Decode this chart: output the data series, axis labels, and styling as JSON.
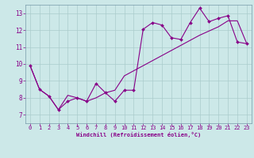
{
  "xlabel": "Windchill (Refroidissement éolien,°C)",
  "bg_color": "#cce8e8",
  "line_color": "#880088",
  "grid_color": "#aacccc",
  "spine_color": "#7799aa",
  "xlim": [
    -0.5,
    23.5
  ],
  "ylim": [
    6.5,
    13.5
  ],
  "xticks": [
    0,
    1,
    2,
    3,
    4,
    5,
    6,
    7,
    8,
    9,
    10,
    11,
    12,
    13,
    14,
    15,
    16,
    17,
    18,
    19,
    20,
    21,
    22,
    23
  ],
  "yticks": [
    7,
    8,
    9,
    10,
    11,
    12,
    13
  ],
  "series1_x": [
    0,
    1,
    2,
    3,
    4,
    5,
    6,
    7,
    8,
    9,
    10,
    11,
    12,
    13,
    14,
    15,
    16,
    17,
    18,
    19,
    20,
    21,
    22,
    23
  ],
  "series1_y": [
    9.9,
    8.5,
    8.1,
    7.3,
    7.8,
    8.0,
    7.8,
    8.85,
    8.3,
    7.8,
    8.45,
    8.45,
    12.05,
    12.45,
    12.3,
    11.55,
    11.45,
    12.45,
    13.3,
    12.5,
    12.7,
    12.85,
    11.3,
    11.2
  ],
  "series2_x": [
    0,
    1,
    2,
    3,
    4,
    5,
    6,
    7,
    8,
    9,
    10,
    11,
    12,
    13,
    14,
    15,
    16,
    17,
    18,
    19,
    20,
    21,
    22,
    23
  ],
  "series2_y": [
    9.9,
    8.5,
    8.1,
    7.3,
    8.15,
    8.0,
    7.8,
    8.0,
    8.3,
    8.45,
    9.3,
    9.6,
    9.9,
    10.2,
    10.5,
    10.8,
    11.1,
    11.4,
    11.7,
    11.95,
    12.2,
    12.55,
    12.55,
    11.2
  ],
  "tick_fontsize": 5.0,
  "xlabel_fontsize": 5.0,
  "marker_size": 2.0,
  "linewidth": 0.8
}
